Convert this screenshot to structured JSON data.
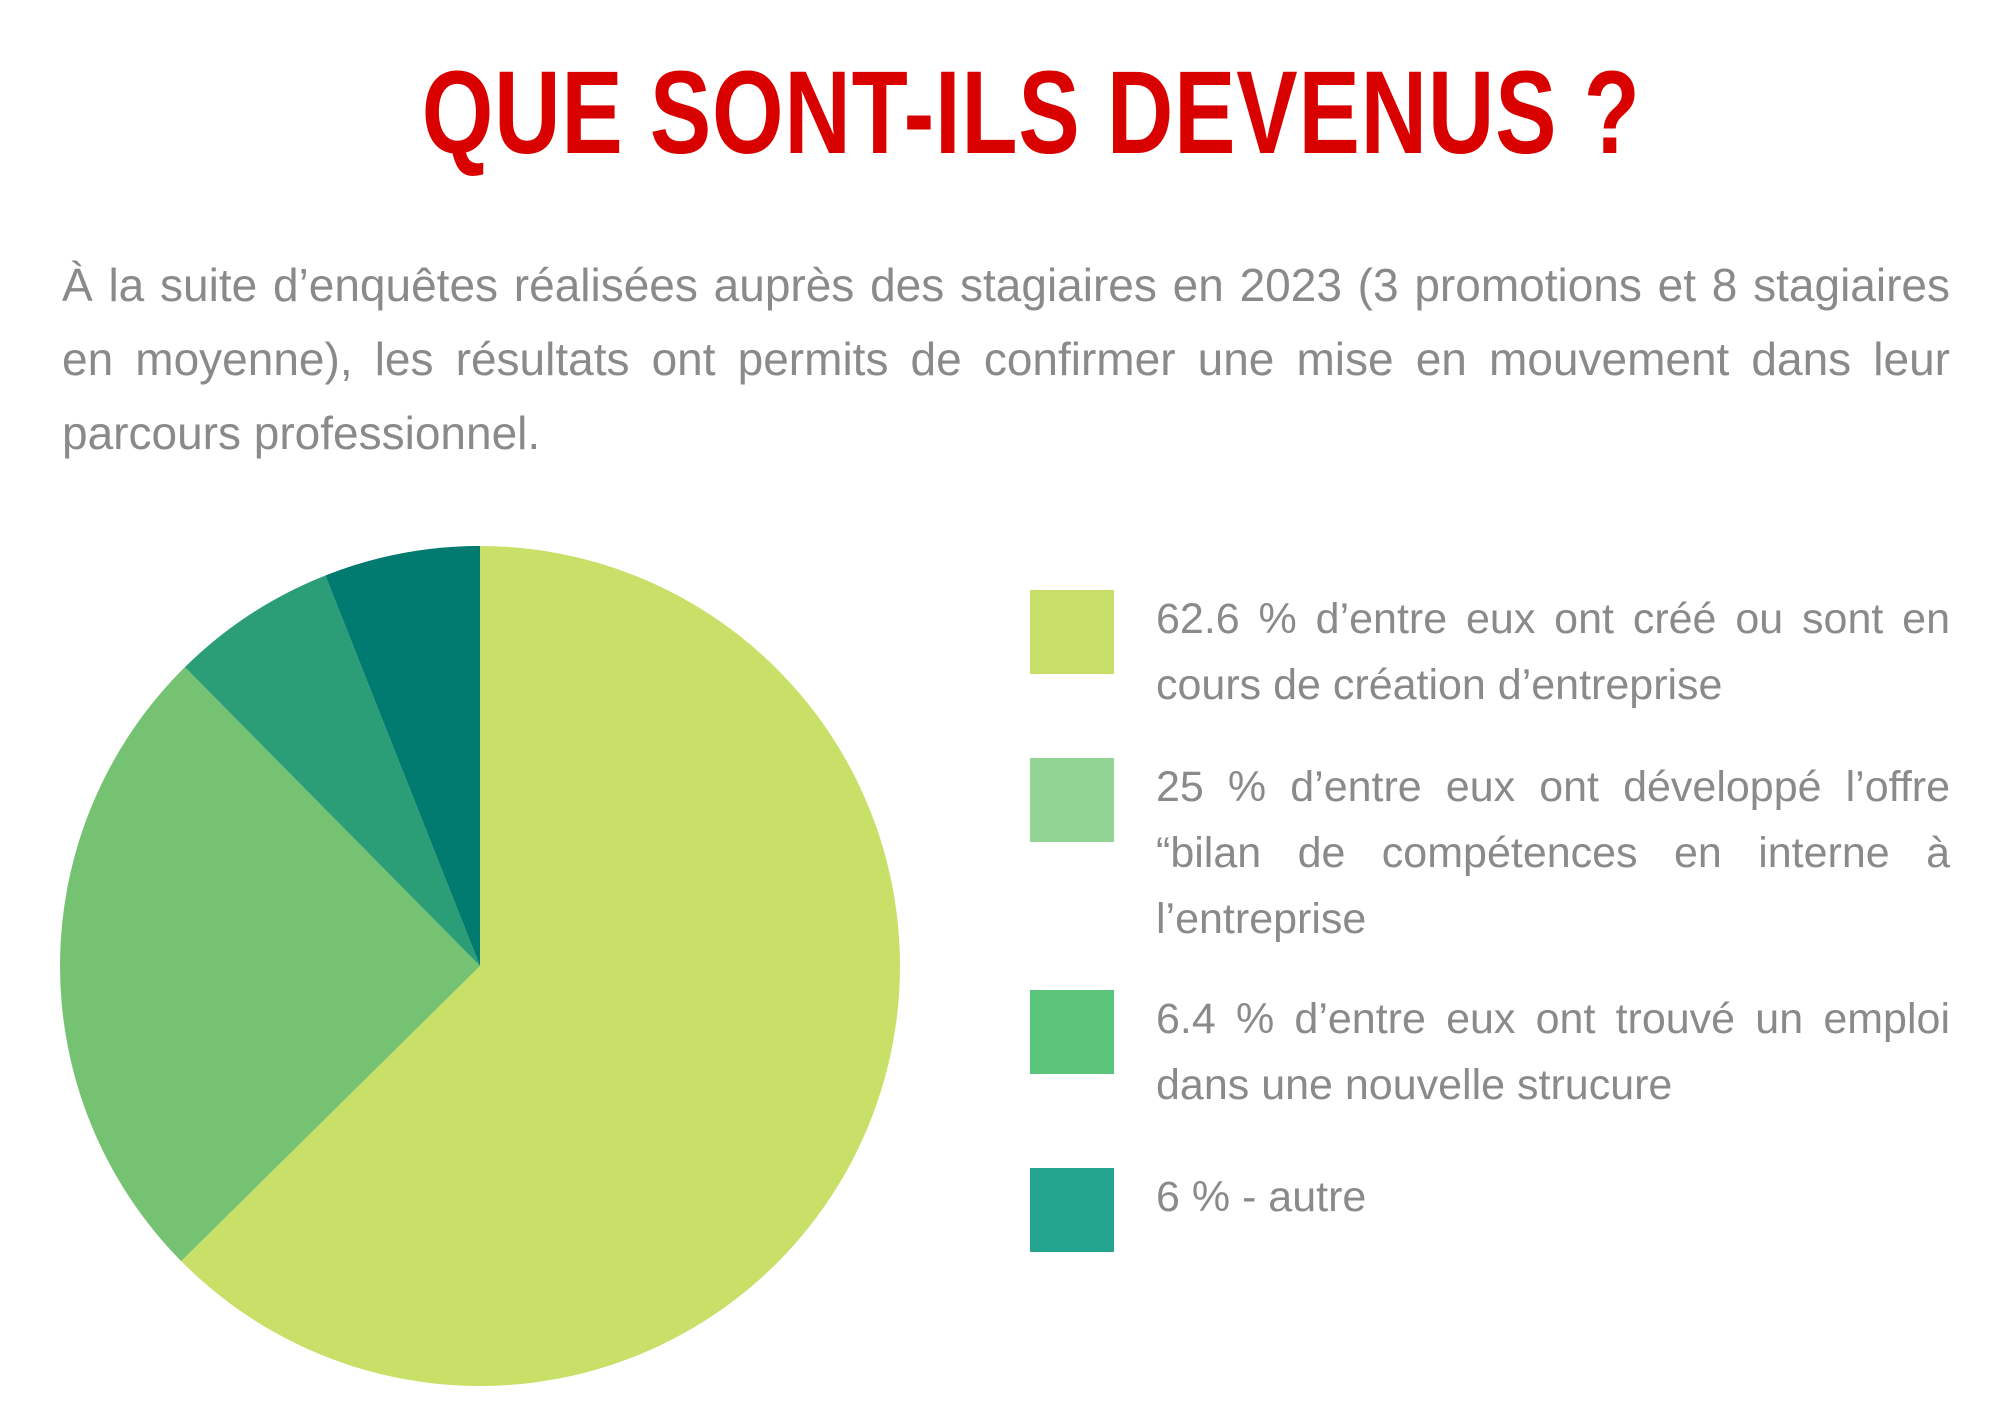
{
  "title": "QUE SONT-ILS DEVENUS ?",
  "intro": "À la suite d’enquêtes réalisées auprès des stagiaires en 2023 (3 promotions et 8 stagiaires en moyenne), les résultats ont permits de confirmer une mise en mouvement dans leur parcours professionnel.",
  "chart_data": {
    "type": "pie",
    "categories": [
      "création d’entreprise",
      "bilan de compétences",
      "nouvelle structure",
      "autre"
    ],
    "values": [
      62.6,
      25,
      6.4,
      6
    ],
    "unit": "%",
    "slice_colors": [
      "#c8e068",
      "#75c372",
      "#2b9e78",
      "#017a70"
    ]
  },
  "legend": [
    {
      "text": "62.6 % d’entre eux ont créé ou sont en cours de création d’entreprise",
      "color": "#c8e068"
    },
    {
      "text": "25 % d’entre eux ont développé l’offre “bilan de compétences en interne à l’entreprise",
      "color": "#92d494"
    },
    {
      "text": "6.4 % d’entre eux ont trouvé un emploi dans une nouvelle strucure",
      "color": "#5ac47b"
    },
    {
      "text": "6 % - autre",
      "color": "#23a590"
    }
  ]
}
